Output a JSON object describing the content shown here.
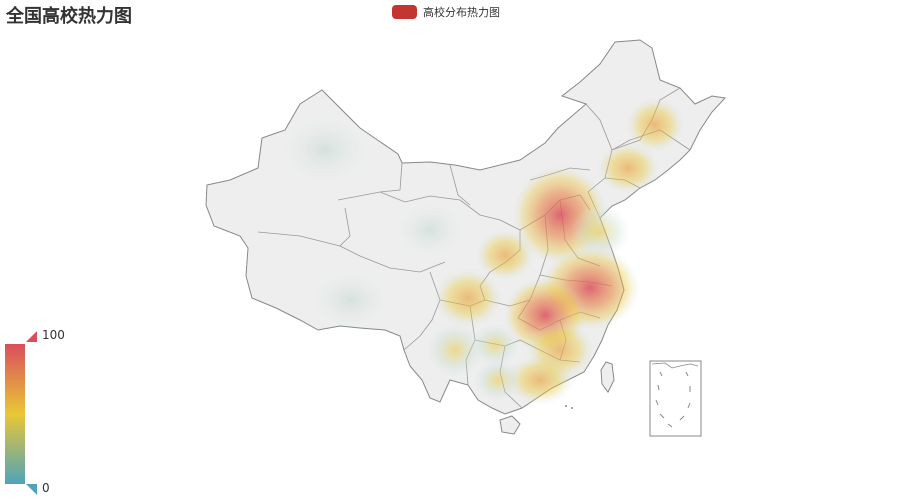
{
  "title": "全国高校热力图",
  "legend": {
    "label": "高校分布热力图",
    "color": "#c23531"
  },
  "visual_map": {
    "max_label": "100",
    "min_label": "0",
    "colors": [
      "#50a3ba",
      "#eac736",
      "#d94e5d"
    ]
  },
  "map": {
    "region": "China",
    "fill_color": "#eeeeee",
    "border_color": "#888888",
    "heat_points": [
      {
        "name": "Beijing/Hebei",
        "value": 95
      },
      {
        "name": "Jiangsu/Shanghai/Anhui",
        "value": 100
      },
      {
        "name": "Hubei/Hunan",
        "value": 85
      },
      {
        "name": "Shaanxi/Henan",
        "value": 70
      },
      {
        "name": "Sichuan/Chongqing",
        "value": 60
      },
      {
        "name": "Guangdong",
        "value": 65
      },
      {
        "name": "Liaoning",
        "value": 55
      },
      {
        "name": "Heilongjiang/Jilin",
        "value": 45
      },
      {
        "name": "Fujian/Jiangxi",
        "value": 55
      },
      {
        "name": "Shandong",
        "value": 60
      },
      {
        "name": "Xinjiang",
        "value": 10
      }
    ]
  }
}
